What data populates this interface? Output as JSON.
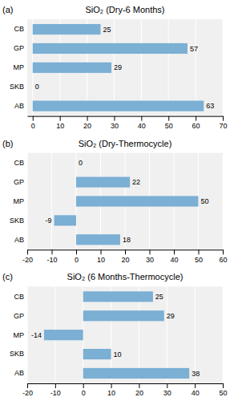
{
  "chart_data": [
    {
      "type": "bar",
      "orientation": "horizontal",
      "title": "SiO₂ (Dry-6 Months)",
      "annotations": [
        "(a)"
      ],
      "categories": [
        "CB",
        "GP",
        "MP",
        "SKB",
        "AB"
      ],
      "values": [
        25,
        57,
        29,
        0,
        63
      ],
      "color": "#7BAFD4",
      "xlim": [
        -2,
        70
      ],
      "xticks": [
        0,
        10,
        20,
        30,
        40,
        50,
        60,
        70
      ],
      "grid": true,
      "data_labels": true
    },
    {
      "type": "bar",
      "orientation": "horizontal",
      "title": "SiO₂ (Dry-Thermocycle)",
      "annotations": [
        "(b)"
      ],
      "categories": [
        "CB",
        "GP",
        "MP",
        "SKB",
        "AB"
      ],
      "values": [
        0,
        22,
        50,
        -9,
        18
      ],
      "color": "#7BAFD4",
      "xlim": [
        -20,
        60
      ],
      "xticks": [
        -20,
        -10,
        0,
        10,
        20,
        30,
        40,
        50,
        60
      ],
      "grid": true,
      "data_labels": true
    },
    {
      "type": "bar",
      "orientation": "horizontal",
      "title": "SiO₂ (6 Months-Thermocycle)",
      "annotations": [
        "(c)"
      ],
      "categories": [
        "CB",
        "GP",
        "MP",
        "SKB",
        "AB"
      ],
      "values": [
        25,
        29,
        -14,
        10,
        38
      ],
      "color": "#7BAFD4",
      "xlim": [
        -20,
        50
      ],
      "xticks": [
        -20,
        -10,
        0,
        10,
        20,
        30,
        40,
        50
      ],
      "grid": true,
      "data_labels": true
    }
  ]
}
